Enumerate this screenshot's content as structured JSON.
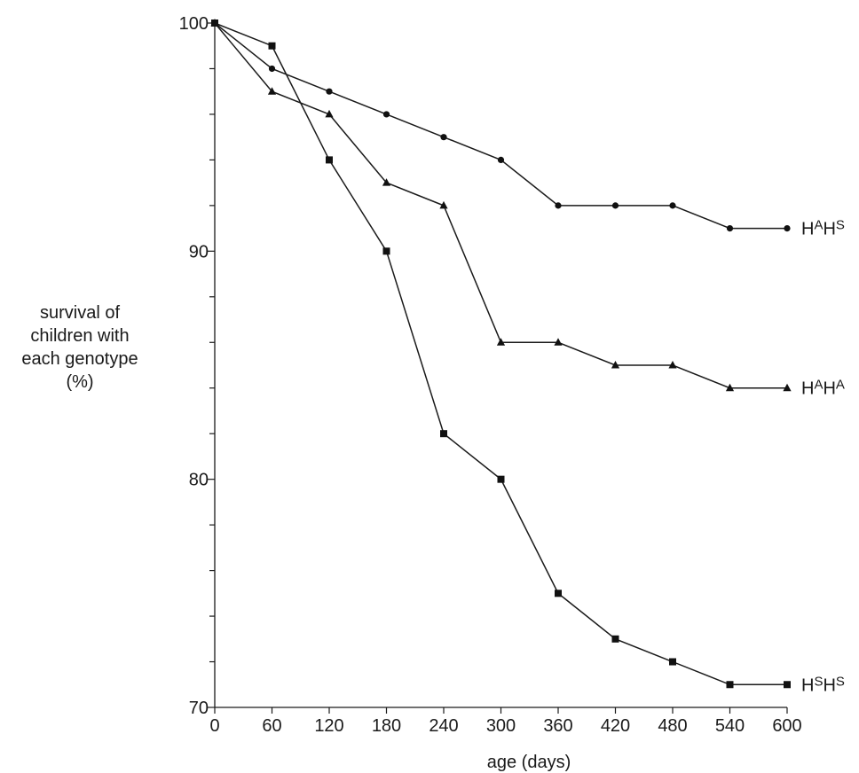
{
  "chart_data": {
    "type": "line",
    "xlabel": "age (days)",
    "ylabel_lines": [
      "survival of",
      "children with",
      "each genotype",
      "(%)"
    ],
    "x": [
      0,
      60,
      120,
      180,
      240,
      300,
      360,
      420,
      480,
      540,
      600
    ],
    "xlim": [
      0,
      600
    ],
    "ylim": [
      70,
      100
    ],
    "x_ticks": [
      0,
      60,
      120,
      180,
      240,
      300,
      360,
      420,
      480,
      540,
      600
    ],
    "y_ticks_labeled": [
      70,
      80,
      90,
      100
    ],
    "y_minor_step": 2,
    "grid": false,
    "legend": "none (series labelled at line ends)",
    "series": [
      {
        "name": "HAHS",
        "label_base": [
          "H",
          "H"
        ],
        "label_sup": [
          "A",
          "S"
        ],
        "marker": "circle",
        "values": [
          100,
          98,
          97,
          96,
          95,
          94,
          92,
          92,
          92,
          91,
          91
        ]
      },
      {
        "name": "HAHA",
        "label_base": [
          "H",
          "H"
        ],
        "label_sup": [
          "A",
          "A"
        ],
        "marker": "triangle",
        "values": [
          100,
          97,
          96,
          93,
          92,
          86,
          86,
          85,
          85,
          84,
          84
        ]
      },
      {
        "name": "HSHS",
        "label_base": [
          "H",
          "H"
        ],
        "label_sup": [
          "S",
          "S"
        ],
        "marker": "square",
        "values": [
          100,
          99,
          94,
          90,
          82,
          80,
          75,
          73,
          72,
          71,
          71
        ]
      }
    ],
    "colors": {
      "line": "#1a1a1a",
      "marker": "#111111",
      "axis": "#1a1a1a"
    }
  }
}
